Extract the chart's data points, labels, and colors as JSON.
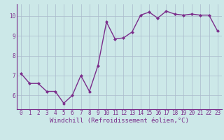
{
  "x": [
    0,
    1,
    2,
    3,
    4,
    5,
    6,
    7,
    8,
    9,
    10,
    11,
    12,
    13,
    14,
    15,
    16,
    17,
    18,
    19,
    20,
    21,
    22,
    23
  ],
  "y": [
    7.1,
    6.6,
    6.6,
    6.2,
    6.2,
    5.6,
    6.0,
    7.0,
    6.2,
    7.5,
    9.7,
    8.85,
    8.9,
    9.2,
    10.05,
    10.2,
    9.9,
    10.25,
    10.1,
    10.05,
    10.1,
    10.05,
    10.05,
    9.25
  ],
  "line_color": "#7b2d8b",
  "marker": "D",
  "marker_size": 2.0,
  "background_color": "#cce8e8",
  "grid_color": "#aabbcc",
  "xlabel": "Windchill (Refroidissement éolien,°C)",
  "ylabel": "",
  "ylim": [
    5.3,
    10.6
  ],
  "xlim": [
    -0.5,
    23.5
  ],
  "yticks": [
    6,
    7,
    8,
    9,
    10
  ],
  "xticks": [
    0,
    1,
    2,
    3,
    4,
    5,
    6,
    7,
    8,
    9,
    10,
    11,
    12,
    13,
    14,
    15,
    16,
    17,
    18,
    19,
    20,
    21,
    22,
    23
  ],
  "tick_fontsize": 5.5,
  "xlabel_fontsize": 6.5,
  "line_width": 1.0
}
